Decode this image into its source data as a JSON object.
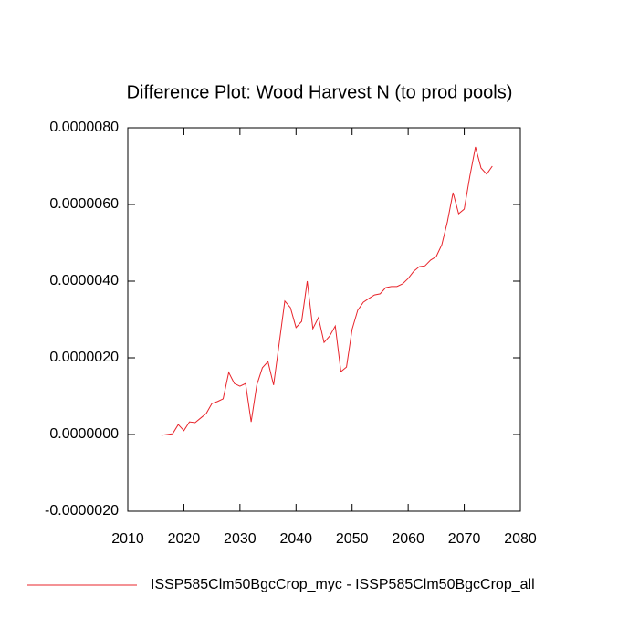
{
  "chart_data": {
    "type": "line",
    "title": "Difference Plot: Wood Harvest N (to prod pools)",
    "x": [
      2016,
      2017,
      2018,
      2019,
      2020,
      2021,
      2022,
      2023,
      2024,
      2025,
      2026,
      2027,
      2028,
      2029,
      2030,
      2031,
      2032,
      2033,
      2034,
      2035,
      2036,
      2037,
      2038,
      2039,
      2040,
      2041,
      2042,
      2043,
      2044,
      2045,
      2046,
      2047,
      2048,
      2049,
      2050,
      2051,
      2052,
      2053,
      2054,
      2055,
      2056,
      2057,
      2058,
      2059,
      2060,
      2061,
      2062,
      2063,
      2064,
      2065,
      2066,
      2067,
      2068,
      2069,
      2070,
      2071,
      2072,
      2073,
      2074,
      2075
    ],
    "series": [
      {
        "name": "ISSP585Clm50BgcCrop_myc - ISSP585Clm50BgcCrop_all",
        "color": "#e8242b",
        "values": [
          -2e-08,
          0,
          2e-08,
          2.6e-07,
          1e-07,
          3.3e-07,
          3.1e-07,
          4.3e-07,
          5.5e-07,
          8.1e-07,
          8.6e-07,
          9.3e-07,
          1.62e-06,
          1.33e-06,
          1.26e-06,
          1.33e-06,
          3.3e-07,
          1.29e-06,
          1.74e-06,
          1.9e-06,
          1.29e-06,
          2.38e-06,
          3.48e-06,
          3.31e-06,
          2.79e-06,
          2.95e-06,
          4e-06,
          2.76e-06,
          3.05e-06,
          2.4e-06,
          2.57e-06,
          2.83e-06,
          1.64e-06,
          1.76e-06,
          2.74e-06,
          3.24e-06,
          3.45e-06,
          3.55e-06,
          3.64e-06,
          3.67e-06,
          3.83e-06,
          3.86e-06,
          3.86e-06,
          3.93e-06,
          4.07e-06,
          4.26e-06,
          4.38e-06,
          4.4e-06,
          4.55e-06,
          4.64e-06,
          4.95e-06,
          5.55e-06,
          6.31e-06,
          5.76e-06,
          5.88e-06,
          6.74e-06,
          7.5e-06,
          6.95e-06,
          6.79e-06,
          7e-06
        ]
      }
    ],
    "xlim": [
      2010,
      2080
    ],
    "xticks": [
      2010,
      2020,
      2030,
      2040,
      2050,
      2060,
      2070,
      2080
    ],
    "ylim": [
      -2e-06,
      8e-06
    ],
    "yticks": [
      {
        "value": -2e-06,
        "label": "-0.0000020"
      },
      {
        "value": 0,
        "label": "0.0000000"
      },
      {
        "value": 2e-06,
        "label": "0.0000020"
      },
      {
        "value": 4e-06,
        "label": "0.0000040"
      },
      {
        "value": 6e-06,
        "label": "0.0000060"
      },
      {
        "value": 8e-06,
        "label": "0.0000080"
      }
    ],
    "grid": false,
    "legend": "bottom"
  }
}
